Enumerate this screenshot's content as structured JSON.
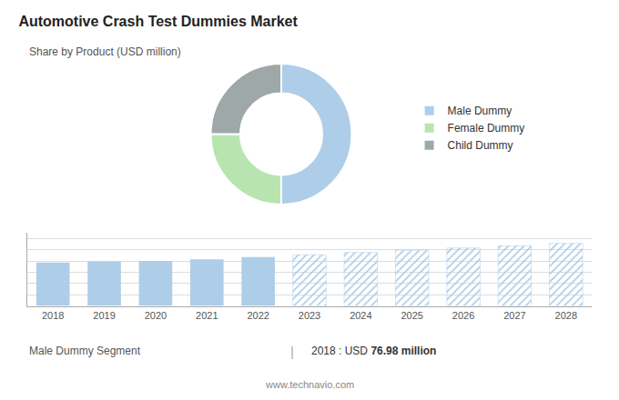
{
  "chart_data": [
    {
      "type": "pie",
      "title": "Automotive Crash Test Dummies Market",
      "subtitle": "Share by Product (USD million)",
      "categories": [
        "Male Dummy",
        "Female Dummy",
        "Child Dummy"
      ],
      "values": [
        50,
        25,
        25
      ],
      "colors": [
        "#aecde8",
        "#b8e4b0",
        "#9ea8a8"
      ],
      "legend": "right"
    },
    {
      "type": "bar",
      "x": [
        2018,
        2019,
        2020,
        2021,
        2022,
        2023,
        2024,
        2025,
        2026,
        2027,
        2028
      ],
      "series": [
        {
          "color": "#aecde8",
          "values": [
            77,
            79,
            80,
            83,
            87,
            null,
            null,
            null,
            null,
            null,
            null
          ]
        },
        {
          "color": "#ddeaf5",
          "values": [
            null,
            null,
            null,
            null,
            null,
            91,
            95,
            99,
            103,
            107,
            111
          ]
        }
      ],
      "xlim": [
        2017.5,
        2028.5
      ],
      "xticks": [
        2018,
        2019,
        2020,
        2021,
        2022,
        2023,
        2024,
        2025,
        2026,
        2027,
        2028
      ],
      "ylim": [
        0,
        130
      ],
      "yticks": [
        0,
        20,
        40,
        60,
        80,
        100,
        120
      ],
      "grid": true,
      "tick_labels": "x",
      "annotations": [
        "Male Dummy Segment",
        "|",
        "2018 : USD ",
        "76.98 million",
        "www.technavio.com"
      ]
    }
  ]
}
